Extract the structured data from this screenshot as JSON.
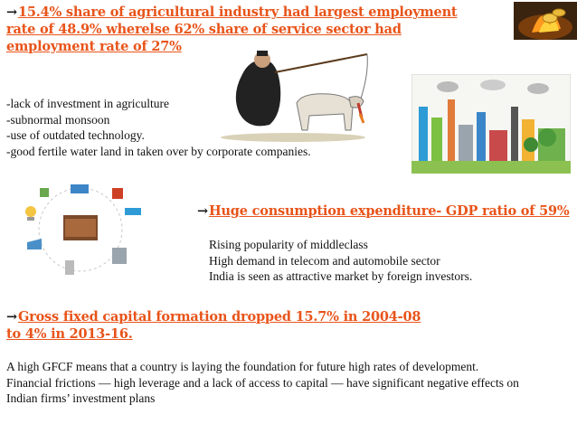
{
  "section1": {
    "arrow": "→",
    "heading": "15.4% share of agricultural industry had largest employment rate of 48.9% wherelse 62% share of service sector had employment rate of 27%",
    "points": [
      "-lack of investment in agriculture",
      "-subnormal monsoon",
      "-use of outdated technology.",
      "-good fertile water land in taken over by corporate companies."
    ]
  },
  "section2": {
    "arrow": "→",
    "heading": "Huge consumption expenditure- GDP ratio of 59%",
    "points": [
      "Rising popularity of middleclass",
      "High demand in telecom and automobile sector",
      "India is seen as attractive market by foreign investors."
    ]
  },
  "section3": {
    "arrow": "→",
    "heading": "Gross fixed capital formation dropped 15.7% in 2004-08 to 4% in 2013-16.",
    "paragraph1": "A high GFCF means that a country is laying the foundation for future high rates of development.",
    "paragraph2": "Financial frictions — high leverage and a lack of access to capital — have significant negative effects on Indian firms’ investment plans"
  },
  "colors": {
    "heading": "#e8541a",
    "text": "#111111",
    "background": "#ffffff"
  }
}
